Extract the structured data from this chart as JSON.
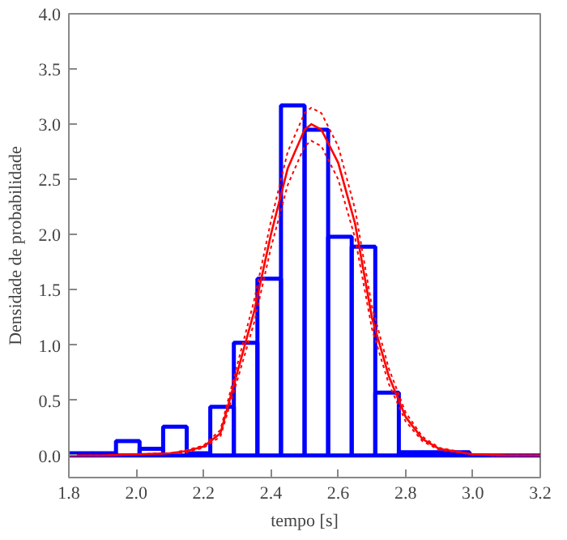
{
  "chart_data": {
    "type": "histogram",
    "xlabel": "tempo [s]",
    "ylabel": "Densidade de probabilidade",
    "bins": [
      1.8,
      1.87,
      1.94,
      2.01,
      2.08,
      2.15,
      2.22,
      2.29,
      2.36,
      2.43,
      2.5,
      2.57,
      2.64,
      2.71,
      2.78,
      2.85,
      2.92,
      2.99,
      3.06,
      3.13,
      3.2
    ],
    "series": [
      {
        "color": "#0000ff",
        "values": [
          0.02,
          0.02,
          0.13,
          0.06,
          0.26,
          0.02,
          0.44,
          1.02,
          1.6,
          3.17,
          2.95,
          1.98,
          1.89,
          0.57,
          0.03,
          0.03,
          0.03,
          0.0,
          0.0,
          0.0
        ]
      },
      {
        "type": "line",
        "color": "#ff0000",
        "line_style": "solid",
        "x": [
          1.8,
          1.9,
          2.0,
          2.1,
          2.15,
          2.2,
          2.25,
          2.3,
          2.35,
          2.4,
          2.45,
          2.5,
          2.52,
          2.55,
          2.6,
          2.65,
          2.7,
          2.75,
          2.8,
          2.85,
          2.9,
          3.0,
          3.1,
          3.2
        ],
        "values": [
          0.0,
          0.0,
          0.01,
          0.02,
          0.04,
          0.08,
          0.2,
          0.75,
          1.3,
          2.0,
          2.6,
          2.95,
          3.0,
          2.95,
          2.65,
          2.1,
          1.25,
          0.72,
          0.35,
          0.15,
          0.06,
          0.01,
          0.0,
          0.0
        ]
      },
      {
        "type": "line",
        "color": "#ff0000",
        "line_style": "dotted",
        "x": [
          1.8,
          1.9,
          2.0,
          2.1,
          2.15,
          2.2,
          2.25,
          2.3,
          2.35,
          2.4,
          2.45,
          2.5,
          2.52,
          2.55,
          2.6,
          2.65,
          2.7,
          2.75,
          2.8,
          2.85,
          2.9,
          3.0,
          3.1,
          3.2
        ],
        "values": [
          0.0,
          0.0,
          0.01,
          0.02,
          0.03,
          0.07,
          0.17,
          0.68,
          1.2,
          1.88,
          2.45,
          2.8,
          2.85,
          2.8,
          2.5,
          1.97,
          1.15,
          0.65,
          0.31,
          0.13,
          0.05,
          0.01,
          0.0,
          0.0
        ]
      },
      {
        "type": "line",
        "color": "#ff0000",
        "line_style": "dotted",
        "x": [
          1.8,
          1.9,
          2.0,
          2.1,
          2.15,
          2.2,
          2.25,
          2.3,
          2.35,
          2.4,
          2.45,
          2.5,
          2.52,
          2.55,
          2.6,
          2.65,
          2.7,
          2.75,
          2.8,
          2.85,
          2.9,
          3.0,
          3.1,
          3.2
        ],
        "values": [
          0.0,
          0.0,
          0.01,
          0.02,
          0.05,
          0.09,
          0.23,
          0.82,
          1.4,
          2.12,
          2.75,
          3.1,
          3.15,
          3.1,
          2.8,
          2.23,
          1.35,
          0.79,
          0.39,
          0.17,
          0.07,
          0.01,
          0.0,
          0.0
        ]
      }
    ],
    "xlim": [
      1.8,
      3.2
    ],
    "ylim": [
      -0.2,
      4.0
    ],
    "xticks": [
      {
        "value": 1.8,
        "label": "1.8"
      },
      {
        "value": 2.0,
        "label": "2.0"
      },
      {
        "value": 2.2,
        "label": "2.2"
      },
      {
        "value": 2.4,
        "label": "2.4"
      },
      {
        "value": 2.6,
        "label": "2.6"
      },
      {
        "value": 2.8,
        "label": "2.8"
      },
      {
        "value": 3.0,
        "label": "3.0"
      },
      {
        "value": 3.2,
        "label": "3.2"
      }
    ],
    "yticks": [
      {
        "value": 0.0,
        "label": "0.0"
      },
      {
        "value": 0.5,
        "label": "0.5"
      },
      {
        "value": 1.0,
        "label": "1.0"
      },
      {
        "value": 1.5,
        "label": "1.5"
      },
      {
        "value": 2.0,
        "label": "2.0"
      },
      {
        "value": 2.5,
        "label": "2.5"
      },
      {
        "value": 3.0,
        "label": "3.0"
      },
      {
        "value": 3.5,
        "label": "3.5"
      },
      {
        "value": 4.0,
        "label": "4.0"
      }
    ],
    "grid": false
  }
}
